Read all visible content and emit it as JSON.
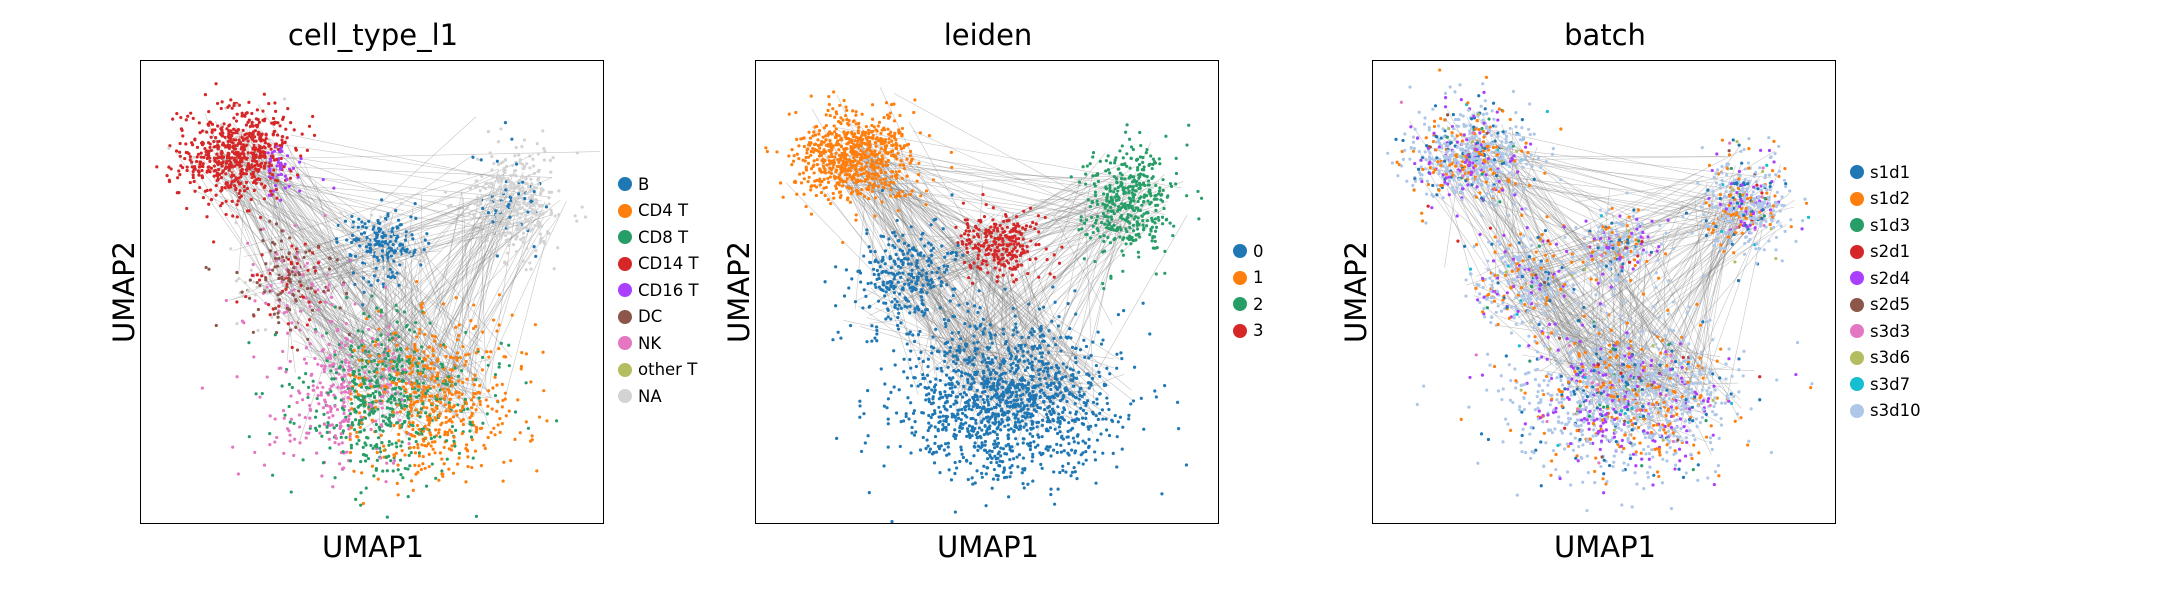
{
  "chart_data": [
    {
      "type": "scatter",
      "title": "cell_type_l1",
      "xlabel": "UMAP1",
      "ylabel": "UMAP2",
      "grid": false,
      "ticks": false,
      "legend_position": "right",
      "categories": [
        "B",
        "CD4 T",
        "CD8 T",
        "CD14 T",
        "CD16 T",
        "DC",
        "NK",
        "other T",
        "NA"
      ],
      "colors": [
        "#1f77b4",
        "#ff7f0e",
        "#279e68",
        "#d62728",
        "#aa40fc",
        "#8c564b",
        "#e377c2",
        "#b5bd61",
        "#d3d3d3"
      ],
      "edges": "gray PAGA-style connections between clusters"
    },
    {
      "type": "scatter",
      "title": "leiden",
      "xlabel": "UMAP1",
      "ylabel": "UMAP2",
      "grid": false,
      "ticks": false,
      "legend_position": "right",
      "categories": [
        "0",
        "1",
        "2",
        "3"
      ],
      "colors": [
        "#1f77b4",
        "#ff7f0e",
        "#279e68",
        "#d62728"
      ],
      "edges": "gray PAGA-style connections between clusters"
    },
    {
      "type": "scatter",
      "title": "batch",
      "xlabel": "UMAP1",
      "ylabel": "UMAP2",
      "grid": false,
      "ticks": false,
      "legend_position": "right",
      "categories": [
        "s1d1",
        "s1d2",
        "s1d3",
        "s2d1",
        "s2d4",
        "s2d5",
        "s3d3",
        "s3d6",
        "s3d7",
        "s3d10"
      ],
      "colors": [
        "#1f77b4",
        "#ff7f0e",
        "#279e68",
        "#d62728",
        "#aa40fc",
        "#8c564b",
        "#e377c2",
        "#b5bd61",
        "#17becf",
        "#aec7e8"
      ],
      "edges": "gray PAGA-style connections between clusters"
    }
  ]
}
